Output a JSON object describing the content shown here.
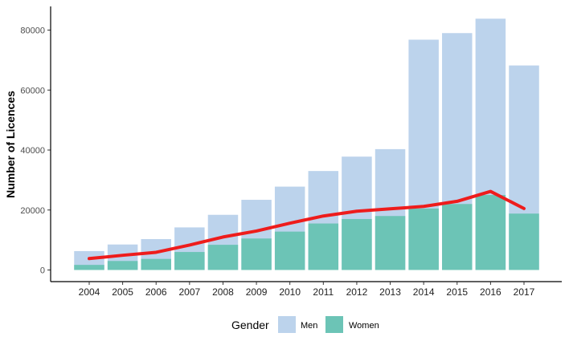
{
  "chart_data": {
    "type": "bar",
    "stacked": false,
    "categories": [
      "2004",
      "2005",
      "2006",
      "2007",
      "2008",
      "2009",
      "2010",
      "2011",
      "2012",
      "2013",
      "2014",
      "2015",
      "2016",
      "2017"
    ],
    "series": [
      {
        "name": "Men",
        "kind": "bar",
        "color": "#bcd3ec",
        "values": [
          6300,
          8500,
          10300,
          14200,
          18400,
          23400,
          27800,
          33000,
          37800,
          40300,
          76800,
          79000,
          83800,
          68200
        ]
      },
      {
        "name": "Women",
        "kind": "bar",
        "color": "#6cc4b6",
        "values": [
          1700,
          3000,
          3700,
          6000,
          8400,
          10500,
          12800,
          15500,
          17000,
          18000,
          20500,
          22000,
          25000,
          18800
        ]
      },
      {
        "kind": "line",
        "color": "#ee1c1c",
        "values": [
          3800,
          4900,
          5900,
          8300,
          11000,
          13000,
          15600,
          18000,
          19600,
          20400,
          21200,
          22900,
          26200,
          20500
        ]
      }
    ],
    "ylabel": "Number of Licences",
    "xlabel": "",
    "ylim": [
      0,
      88000
    ],
    "yticks": [
      0,
      20000,
      40000,
      60000,
      80000
    ],
    "grid": false,
    "legend": {
      "title": "Gender",
      "position": "bottom",
      "entries": [
        "Men",
        "Women"
      ]
    }
  }
}
